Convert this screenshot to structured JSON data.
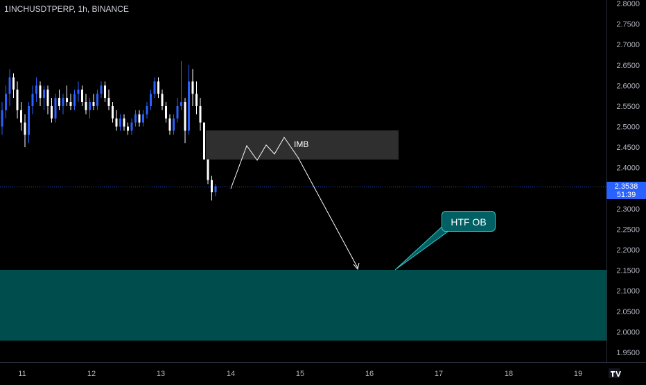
{
  "header": {
    "symbol_info": "1INCHUSDTPERP, 1h, BINANCE"
  },
  "price_axis": {
    "labels": [
      "2.8000",
      "2.7500",
      "2.7000",
      "2.6500",
      "2.6000",
      "2.5500",
      "2.5000",
      "2.4500",
      "2.4000",
      "2.3500",
      "2.3000",
      "2.2500",
      "2.2000",
      "2.1500",
      "2.1000",
      "2.0500",
      "2.0000",
      "1.9500"
    ],
    "current_price": "2.3538",
    "countdown": "51:39"
  },
  "time_axis": {
    "labels": [
      "11",
      "12",
      "13",
      "14",
      "15",
      "16",
      "17",
      "18",
      "19"
    ]
  },
  "annotations": {
    "imbalance_label": "IMB",
    "htf_label": "HTF OB"
  },
  "colors": {
    "background": "#000000",
    "candle_up": "#2962ff",
    "candle_down": "#ffffff",
    "imb_zone": "#2f2f2f",
    "htf_zone": "#004d4d",
    "current_price_line": "#2962ff",
    "axis_text": "#b2b5be",
    "drawing_line": "#ffffff"
  },
  "chart_data": {
    "type": "candlestick",
    "ylim": [
      1.93,
      2.81
    ],
    "candles": [
      {
        "o": 2.5,
        "h": 2.56,
        "l": 2.48,
        "c": 2.54
      },
      {
        "o": 2.54,
        "h": 2.6,
        "l": 2.52,
        "c": 2.58
      },
      {
        "o": 2.58,
        "h": 2.64,
        "l": 2.55,
        "c": 2.62
      },
      {
        "o": 2.62,
        "h": 2.63,
        "l": 2.57,
        "c": 2.59
      },
      {
        "o": 2.59,
        "h": 2.61,
        "l": 2.52,
        "c": 2.54
      },
      {
        "o": 2.54,
        "h": 2.56,
        "l": 2.49,
        "c": 2.51
      },
      {
        "o": 2.51,
        "h": 2.53,
        "l": 2.45,
        "c": 2.48
      },
      {
        "o": 2.48,
        "h": 2.56,
        "l": 2.46,
        "c": 2.55
      },
      {
        "o": 2.55,
        "h": 2.6,
        "l": 2.53,
        "c": 2.58
      },
      {
        "o": 2.58,
        "h": 2.62,
        "l": 2.56,
        "c": 2.6
      },
      {
        "o": 2.6,
        "h": 2.61,
        "l": 2.55,
        "c": 2.57
      },
      {
        "o": 2.57,
        "h": 2.6,
        "l": 2.54,
        "c": 2.59
      },
      {
        "o": 2.59,
        "h": 2.6,
        "l": 2.53,
        "c": 2.55
      },
      {
        "o": 2.55,
        "h": 2.57,
        "l": 2.51,
        "c": 2.52
      },
      {
        "o": 2.52,
        "h": 2.58,
        "l": 2.51,
        "c": 2.57
      },
      {
        "o": 2.57,
        "h": 2.59,
        "l": 2.54,
        "c": 2.55
      },
      {
        "o": 2.55,
        "h": 2.58,
        "l": 2.53,
        "c": 2.57
      },
      {
        "o": 2.57,
        "h": 2.6,
        "l": 2.55,
        "c": 2.56
      },
      {
        "o": 2.56,
        "h": 2.58,
        "l": 2.54,
        "c": 2.55
      },
      {
        "o": 2.55,
        "h": 2.59,
        "l": 2.54,
        "c": 2.58
      },
      {
        "o": 2.58,
        "h": 2.61,
        "l": 2.56,
        "c": 2.59
      },
      {
        "o": 2.59,
        "h": 2.6,
        "l": 2.55,
        "c": 2.56
      },
      {
        "o": 2.56,
        "h": 2.58,
        "l": 2.53,
        "c": 2.54
      },
      {
        "o": 2.54,
        "h": 2.57,
        "l": 2.52,
        "c": 2.56
      },
      {
        "o": 2.56,
        "h": 2.58,
        "l": 2.54,
        "c": 2.55
      },
      {
        "o": 2.55,
        "h": 2.59,
        "l": 2.54,
        "c": 2.58
      },
      {
        "o": 2.58,
        "h": 2.61,
        "l": 2.57,
        "c": 2.6
      },
      {
        "o": 2.6,
        "h": 2.61,
        "l": 2.56,
        "c": 2.57
      },
      {
        "o": 2.57,
        "h": 2.59,
        "l": 2.54,
        "c": 2.55
      },
      {
        "o": 2.55,
        "h": 2.56,
        "l": 2.51,
        "c": 2.52
      },
      {
        "o": 2.52,
        "h": 2.54,
        "l": 2.49,
        "c": 2.5
      },
      {
        "o": 2.5,
        "h": 2.53,
        "l": 2.49,
        "c": 2.52
      },
      {
        "o": 2.52,
        "h": 2.53,
        "l": 2.49,
        "c": 2.5
      },
      {
        "o": 2.5,
        "h": 2.51,
        "l": 2.48,
        "c": 2.49
      },
      {
        "o": 2.49,
        "h": 2.52,
        "l": 2.48,
        "c": 2.51
      },
      {
        "o": 2.51,
        "h": 2.54,
        "l": 2.5,
        "c": 2.53
      },
      {
        "o": 2.53,
        "h": 2.54,
        "l": 2.5,
        "c": 2.51
      },
      {
        "o": 2.51,
        "h": 2.54,
        "l": 2.5,
        "c": 2.53
      },
      {
        "o": 2.53,
        "h": 2.56,
        "l": 2.52,
        "c": 2.55
      },
      {
        "o": 2.55,
        "h": 2.59,
        "l": 2.54,
        "c": 2.58
      },
      {
        "o": 2.58,
        "h": 2.62,
        "l": 2.57,
        "c": 2.61
      },
      {
        "o": 2.61,
        "h": 2.62,
        "l": 2.57,
        "c": 2.58
      },
      {
        "o": 2.58,
        "h": 2.59,
        "l": 2.54,
        "c": 2.55
      },
      {
        "o": 2.55,
        "h": 2.56,
        "l": 2.51,
        "c": 2.52
      },
      {
        "o": 2.52,
        "h": 2.53,
        "l": 2.48,
        "c": 2.49
      },
      {
        "o": 2.49,
        "h": 2.53,
        "l": 2.48,
        "c": 2.52
      },
      {
        "o": 2.52,
        "h": 2.57,
        "l": 2.51,
        "c": 2.55
      },
      {
        "o": 2.55,
        "h": 2.66,
        "l": 2.54,
        "c": 2.56
      },
      {
        "o": 2.56,
        "h": 2.57,
        "l": 2.46,
        "c": 2.49
      },
      {
        "o": 2.49,
        "h": 2.65,
        "l": 2.48,
        "c": 2.61
      },
      {
        "o": 2.61,
        "h": 2.64,
        "l": 2.55,
        "c": 2.58
      },
      {
        "o": 2.58,
        "h": 2.61,
        "l": 2.53,
        "c": 2.55
      },
      {
        "o": 2.55,
        "h": 2.57,
        "l": 2.49,
        "c": 2.51
      },
      {
        "o": 2.51,
        "h": 2.51,
        "l": 2.42,
        "c": 2.42
      },
      {
        "o": 2.42,
        "h": 2.42,
        "l": 2.36,
        "c": 2.37
      },
      {
        "o": 2.37,
        "h": 2.38,
        "l": 2.32,
        "c": 2.34
      },
      {
        "o": 2.34,
        "h": 2.36,
        "l": 2.33,
        "c": 2.354
      }
    ]
  }
}
